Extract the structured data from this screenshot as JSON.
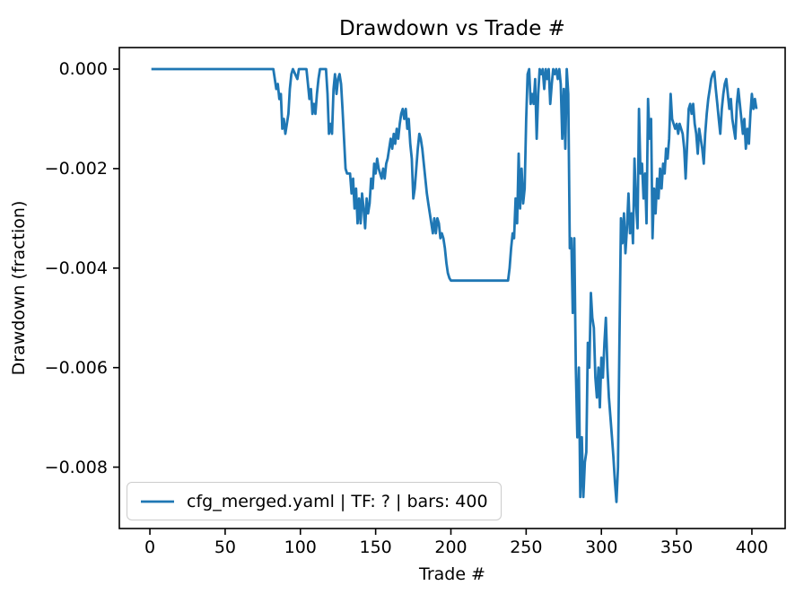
{
  "chart_data": {
    "type": "line",
    "title": "Drawdown vs Trade #",
    "xlabel": "Trade #",
    "ylabel": "Drawdown (fraction)",
    "grid": false,
    "legend_position": "lower left",
    "xlim": [
      -20.3,
      422.1
    ],
    "ylim": [
      -0.009234,
      0.000433
    ],
    "x_tick_values": [
      0,
      50,
      100,
      150,
      200,
      250,
      300,
      350,
      400
    ],
    "x_tick_labels": [
      "0",
      "50",
      "100",
      "150",
      "200",
      "250",
      "300",
      "350",
      "400"
    ],
    "y_tick_values": [
      0.0,
      -0.002,
      -0.004,
      -0.006,
      -0.008
    ],
    "y_tick_labels": [
      "0.000",
      "−0.002",
      "−0.004",
      "−0.006",
      "−0.008"
    ],
    "axis_color": "#000000",
    "series": [
      {
        "name": "cfg_merged.yaml | TF: ? | bars: 400",
        "color": "#1f77b4",
        "points": [
          [
            1,
            0
          ],
          [
            82,
            0
          ],
          [
            84,
            -0.0004
          ],
          [
            85,
            -0.0003
          ],
          [
            86,
            -0.0006
          ],
          [
            87,
            -0.0005
          ],
          [
            88,
            -0.0012
          ],
          [
            89,
            -0.001
          ],
          [
            90,
            -0.0013
          ],
          [
            92,
            -0.0009
          ],
          [
            93,
            -0.0004
          ],
          [
            94,
            -0.0001
          ],
          [
            95,
            0
          ],
          [
            98,
            -0.0002
          ],
          [
            99,
            0
          ],
          [
            104,
            0
          ],
          [
            105,
            -0.0003
          ],
          [
            106,
            -0.0006
          ],
          [
            107,
            -0.0004
          ],
          [
            108,
            -0.0009
          ],
          [
            109,
            -0.0007
          ],
          [
            110,
            -0.0009
          ],
          [
            111,
            -0.0005
          ],
          [
            112,
            -0.0002
          ],
          [
            113,
            0
          ],
          [
            117,
            0
          ],
          [
            118,
            -0.0005
          ],
          [
            119,
            -0.0013
          ],
          [
            120,
            -0.0011
          ],
          [
            121,
            -0.0013
          ],
          [
            122,
            -0.0004
          ],
          [
            123,
            -0.0001
          ],
          [
            124,
            -0.0005
          ],
          [
            125,
            -0.0002
          ],
          [
            126,
            -0.0001
          ],
          [
            127,
            -0.0003
          ],
          [
            128,
            -0.0008
          ],
          [
            129,
            -0.0014
          ],
          [
            130,
            -0.002
          ],
          [
            131,
            -0.0021
          ],
          [
            133,
            -0.0021
          ],
          [
            134,
            -0.0025
          ],
          [
            135,
            -0.0022
          ],
          [
            136,
            -0.0028
          ],
          [
            137,
            -0.0024
          ],
          [
            138,
            -0.0031
          ],
          [
            139,
            -0.0026
          ],
          [
            140,
            -0.0031
          ],
          [
            141,
            -0.0025
          ],
          [
            142,
            -0.0028
          ],
          [
            143,
            -0.0032
          ],
          [
            144,
            -0.0026
          ],
          [
            145,
            -0.0029
          ],
          [
            146,
            -0.0027
          ],
          [
            147,
            -0.0022
          ],
          [
            148,
            -0.0024
          ],
          [
            149,
            -0.0019
          ],
          [
            150,
            -0.0021
          ],
          [
            151,
            -0.0018
          ],
          [
            152,
            -0.002
          ],
          [
            154,
            -0.0022
          ],
          [
            155,
            -0.002
          ],
          [
            156,
            -0.0022
          ],
          [
            157,
            -0.0019
          ],
          [
            158,
            -0.0018
          ],
          [
            159,
            -0.0016
          ],
          [
            160,
            -0.0014
          ],
          [
            161,
            -0.0016
          ],
          [
            162,
            -0.0013
          ],
          [
            163,
            -0.0015
          ],
          [
            164,
            -0.0012
          ],
          [
            165,
            -0.0014
          ],
          [
            166,
            -0.0011
          ],
          [
            167,
            -0.0009
          ],
          [
            168,
            -0.0008
          ],
          [
            169,
            -0.001
          ],
          [
            170,
            -0.0008
          ],
          [
            171,
            -0.0012
          ],
          [
            172,
            -0.001
          ],
          [
            173,
            -0.0015
          ],
          [
            174,
            -0.0018
          ],
          [
            175,
            -0.0026
          ],
          [
            176,
            -0.0024
          ],
          [
            177,
            -0.002
          ],
          [
            178,
            -0.0016
          ],
          [
            179,
            -0.0013
          ],
          [
            180,
            -0.0014
          ],
          [
            181,
            -0.0016
          ],
          [
            182,
            -0.0019
          ],
          [
            183,
            -0.0022
          ],
          [
            184,
            -0.0025
          ],
          [
            185,
            -0.0027
          ],
          [
            186,
            -0.0029
          ],
          [
            187,
            -0.0031
          ],
          [
            188,
            -0.0033
          ],
          [
            189,
            -0.003
          ],
          [
            190,
            -0.0033
          ],
          [
            191,
            -0.003
          ],
          [
            192,
            -0.0031
          ],
          [
            193,
            -0.0034
          ],
          [
            194,
            -0.0033
          ],
          [
            195,
            -0.0034
          ],
          [
            196,
            -0.0036
          ],
          [
            197,
            -0.0039
          ],
          [
            198,
            -0.0041
          ],
          [
            199,
            -0.0042
          ],
          [
            200,
            -0.00425
          ],
          [
            238,
            -0.00425
          ],
          [
            239,
            -0.004
          ],
          [
            240,
            -0.0036
          ],
          [
            241,
            -0.0033
          ],
          [
            242,
            -0.0034
          ],
          [
            243,
            -0.0026
          ],
          [
            244,
            -0.0031
          ],
          [
            245,
            -0.0017
          ],
          [
            246,
            -0.0028
          ],
          [
            247,
            -0.002
          ],
          [
            248,
            -0.0027
          ],
          [
            249,
            -0.0024
          ],
          [
            250,
            -0.001
          ],
          [
            251,
            -0.0001
          ],
          [
            252,
            0
          ],
          [
            253,
            -0.0007
          ],
          [
            254,
            -0.0005
          ],
          [
            255,
            -0.0007
          ],
          [
            256,
            -0.0002
          ],
          [
            257,
            -0.0014
          ],
          [
            258,
            -0.0005
          ],
          [
            259,
            0
          ],
          [
            260,
            -0.0001
          ],
          [
            261,
            0
          ],
          [
            262,
            -0.0004
          ],
          [
            263,
            0
          ],
          [
            264,
            -0.0002
          ],
          [
            265,
            0
          ],
          [
            266,
            -0.0007
          ],
          [
            267,
            -0.0003
          ],
          [
            268,
            0
          ],
          [
            269,
            -0.0001
          ],
          [
            270,
            0
          ],
          [
            271,
            -0.0002
          ],
          [
            272,
            0
          ],
          [
            273,
            -0.0003
          ],
          [
            274,
            -0.0014
          ],
          [
            275,
            -0.0004
          ],
          [
            276,
            -0.0016
          ],
          [
            277,
            0
          ],
          [
            278,
            -0.0005
          ],
          [
            279,
            -0.0036
          ],
          [
            280,
            -0.0034
          ],
          [
            281,
            -0.0049
          ],
          [
            282,
            -0.0034
          ],
          [
            283,
            -0.006
          ],
          [
            284,
            -0.0074
          ],
          [
            285,
            -0.006
          ],
          [
            286,
            -0.0086
          ],
          [
            287,
            -0.0074
          ],
          [
            288,
            -0.0086
          ],
          [
            289,
            -0.0079
          ],
          [
            290,
            -0.0077
          ],
          [
            291,
            -0.0055
          ],
          [
            292,
            -0.006
          ],
          [
            293,
            -0.0045
          ],
          [
            294,
            -0.005
          ],
          [
            295,
            -0.0052
          ],
          [
            296,
            -0.0062
          ],
          [
            297,
            -0.0066
          ],
          [
            298,
            -0.006
          ],
          [
            299,
            -0.0068
          ],
          [
            300,
            -0.0058
          ],
          [
            301,
            -0.0062
          ],
          [
            302,
            -0.0055
          ],
          [
            303,
            -0.005
          ],
          [
            304,
            -0.006
          ],
          [
            305,
            -0.0066
          ],
          [
            306,
            -0.007
          ],
          [
            307,
            -0.0074
          ],
          [
            308,
            -0.0078
          ],
          [
            309,
            -0.0083
          ],
          [
            310,
            -0.0087
          ],
          [
            311,
            -0.008
          ],
          [
            312,
            -0.0055
          ],
          [
            313,
            -0.003
          ],
          [
            314,
            -0.0035
          ],
          [
            315,
            -0.0029
          ],
          [
            316,
            -0.0037
          ],
          [
            317,
            -0.0032
          ],
          [
            318,
            -0.0025
          ],
          [
            319,
            -0.0033
          ],
          [
            320,
            -0.0029
          ],
          [
            321,
            -0.0035
          ],
          [
            322,
            -0.0018
          ],
          [
            323,
            -0.0027
          ],
          [
            324,
            -0.0032
          ],
          [
            325,
            -0.0008
          ],
          [
            326,
            -0.0021
          ],
          [
            327,
            -0.0019
          ],
          [
            328,
            -0.0026
          ],
          [
            329,
            -0.0021
          ],
          [
            330,
            -0.0031
          ],
          [
            331,
            -0.0006
          ],
          [
            332,
            -0.0014
          ],
          [
            333,
            -0.001
          ],
          [
            334,
            -0.0034
          ],
          [
            335,
            -0.0024
          ],
          [
            336,
            -0.0029
          ],
          [
            337,
            -0.0022
          ],
          [
            338,
            -0.0026
          ],
          [
            339,
            -0.002
          ],
          [
            340,
            -0.0024
          ],
          [
            341,
            -0.0019
          ],
          [
            342,
            -0.0021
          ],
          [
            343,
            -0.0016
          ],
          [
            344,
            -0.0018
          ],
          [
            345,
            -0.0014
          ],
          [
            346,
            -0.0005
          ],
          [
            347,
            -0.001
          ],
          [
            348,
            -0.0011
          ],
          [
            349,
            -0.0012
          ],
          [
            350,
            -0.0011
          ],
          [
            351,
            -0.0013
          ],
          [
            352,
            -0.0011
          ],
          [
            353,
            -0.0012
          ],
          [
            354,
            -0.0013
          ],
          [
            355,
            -0.0016
          ],
          [
            356,
            -0.0022
          ],
          [
            357,
            -0.0015
          ],
          [
            358,
            -0.0008
          ],
          [
            359,
            -0.0007
          ],
          [
            360,
            -0.0009
          ],
          [
            361,
            -0.0007
          ],
          [
            362,
            -0.0011
          ],
          [
            363,
            -0.0013
          ],
          [
            364,
            -0.0017
          ],
          [
            365,
            -0.0012
          ],
          [
            366,
            -0.0014
          ],
          [
            367,
            -0.0016
          ],
          [
            368,
            -0.0019
          ],
          [
            369,
            -0.0013
          ],
          [
            370,
            -0.0009
          ],
          [
            371,
            -0.0006
          ],
          [
            372,
            -0.0004
          ],
          [
            373,
            -0.0002
          ],
          [
            374,
            -0.0001
          ],
          [
            375,
            -5e-05
          ],
          [
            376,
            -0.0004
          ],
          [
            377,
            -0.0007
          ],
          [
            378,
            -0.001
          ],
          [
            379,
            -0.0013
          ],
          [
            380,
            -0.0008
          ],
          [
            381,
            -0.0005
          ],
          [
            382,
            -0.0003
          ],
          [
            383,
            -0.0002
          ],
          [
            384,
            -0.0005
          ],
          [
            385,
            -0.0008
          ],
          [
            386,
            -0.0006
          ],
          [
            387,
            -0.001
          ],
          [
            388,
            -0.0012
          ],
          [
            389,
            -0.0014
          ],
          [
            390,
            -0.0007
          ],
          [
            391,
            -0.0004
          ],
          [
            392,
            -0.0007
          ],
          [
            393,
            -0.001
          ],
          [
            394,
            -0.0013
          ],
          [
            395,
            -0.001
          ],
          [
            396,
            -0.0016
          ],
          [
            397,
            -0.0012
          ],
          [
            398,
            -0.0015
          ],
          [
            399,
            -0.0009
          ],
          [
            400,
            -0.0005
          ],
          [
            401,
            -0.0008
          ],
          [
            402,
            -0.0006
          ],
          [
            403,
            -0.0008
          ]
        ]
      }
    ]
  }
}
